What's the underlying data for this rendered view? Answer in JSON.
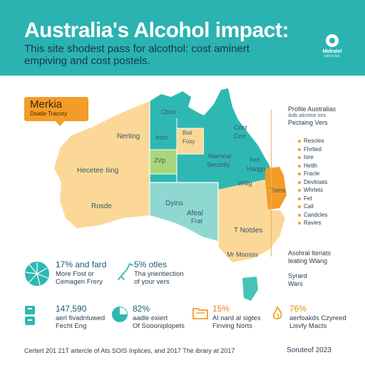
{
  "header": {
    "title": "Australia's Alcohol impact:",
    "subtitle_line1": "This site shodest pass for alcothol: cost aminert",
    "subtitle_line2": "empiving and cost postels.",
    "logo_name": "Midratel",
    "logo_sub": "lafa ls kar"
  },
  "callout": {
    "title": "Merkia",
    "subtitle": "Doatle Tracory"
  },
  "map": {
    "regions": [
      {
        "label": "Nerting"
      },
      {
        "label": "Hecetee Iiing"
      },
      {
        "label": "Rosde"
      },
      {
        "label": "Ctnis"
      },
      {
        "label": "Inch"
      },
      {
        "label": "Boit"
      },
      {
        "label": "Fosy"
      },
      {
        "label": "2Vp"
      },
      {
        "label": "Cost"
      },
      {
        "label": "Cori"
      },
      {
        "label": "Marnoal"
      },
      {
        "label": "Secority"
      },
      {
        "label": "Fert"
      },
      {
        "label": "Haqgo"
      },
      {
        "label": "Wilig"
      },
      {
        "label": "Trens"
      },
      {
        "label": "Dyins"
      },
      {
        "label": "Afeal"
      },
      {
        "label": "Frat"
      },
      {
        "label": "T Notdes"
      },
      {
        "label": "Mr Moosss"
      }
    ],
    "colors": {
      "tan": "#fbd898",
      "teal_dark": "#2fb8b3",
      "teal_light": "#8fd8d2",
      "green": "#a9d67a",
      "orange": "#f39c28",
      "tasmania": "#48c2b6"
    }
  },
  "legend": {
    "heading1": "Profile Australias",
    "heading2": "ibdb alictrtoe tres",
    "heading3": "Pectaing Vers",
    "items": [
      "Rescles",
      "Fhrtied",
      "Iore",
      "Hetth",
      "Fracle",
      "Devitoats",
      "Whrlets",
      "Fet",
      "Call",
      "Candcles",
      "Ravies"
    ]
  },
  "side_notes": {
    "note1_line1": "Asohral Iteriats",
    "note1_line2": "Ieating Wlang",
    "note2_line1": "Syrard",
    "note2_line2": "Wars"
  },
  "stats": [
    {
      "icon": "pie-icon",
      "value": "17%",
      "value_suffix": " and fard",
      "line1": "More Fost or",
      "line2": "Cemagen Frery"
    },
    {
      "icon": "bottle-icon",
      "value": "5%",
      "value_suffix": " otles",
      "line1": "Tha yrientiection",
      "line2": "of your vers"
    },
    {
      "icon": "calculator-icon",
      "value": "147,590",
      "value_suffix": "",
      "line1": "aerl fivadntuwed",
      "line2": "Fecht Eng"
    },
    {
      "icon": "chart-circle-icon",
      "value": "82%",
      "value_suffix": "",
      "line1": "aadle exiert",
      "line2": "Of Soooniplopets"
    },
    {
      "icon": "folder-icon",
      "value": "15%",
      "value_suffix": "",
      "line1": "Al nard al sigtes",
      "line2": "Finving Norts"
    },
    {
      "icon": "flame-icon",
      "value": "76%",
      "value_suffix": "",
      "line1": "aerfoakds Czyreed",
      "line2": "Lisvfy Macts"
    }
  ],
  "footer": {
    "left": "Certert 201 21T artercle of Ats SOIS Inplices, and 2017 The ibrary at 2017",
    "right": "Soruteof 2023"
  }
}
